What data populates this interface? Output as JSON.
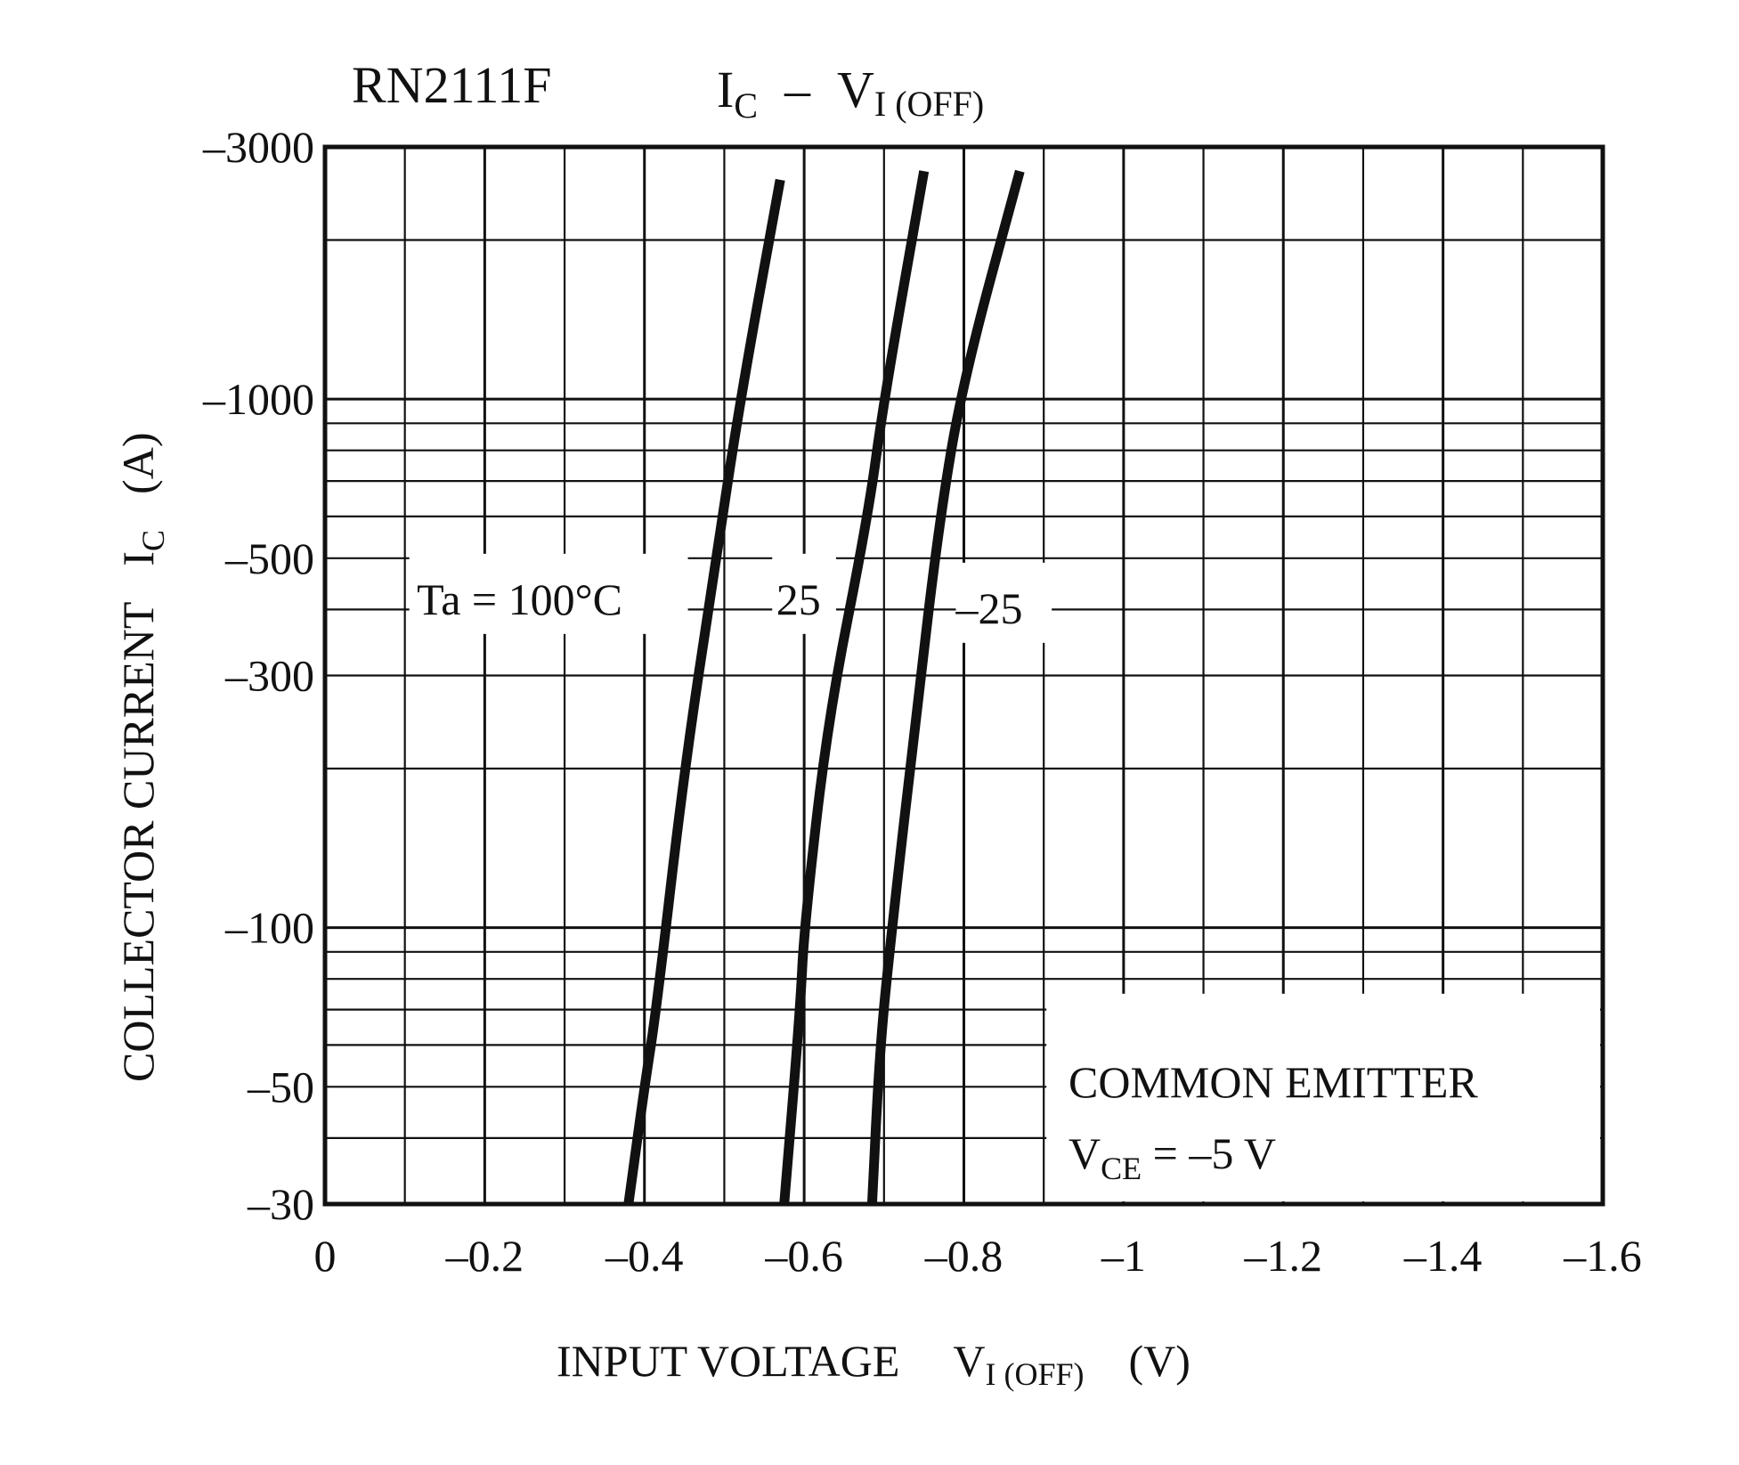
{
  "chart_data": {
    "type": "line",
    "title": {
      "part": "RN2111F",
      "y_main": "I",
      "y_sub": "C",
      "dash": "–",
      "x_main": "V",
      "x_sub": "I (OFF)"
    },
    "xlabel": {
      "text": "INPUT VOLTAGE",
      "sym_main": "V",
      "sym_sub": "I (OFF)",
      "unit": "(V)"
    },
    "ylabel": {
      "text": "COLLECTOR CURRENT",
      "sym_main": "I",
      "sym_sub": "C",
      "unit": "(A)"
    },
    "xlim": [
      0,
      -1.6
    ],
    "ylim": [
      -30,
      -3000
    ],
    "y_scale": "log",
    "x_ticks": [
      0,
      -0.2,
      -0.4,
      -0.6,
      -0.8,
      -1,
      -1.2,
      -1.4,
      -1.6
    ],
    "x_tick_labels": [
      "0",
      "–0.2",
      "–0.4",
      "–0.6",
      "–0.8",
      "–1",
      "–1.2",
      "–1.4",
      "–1.6"
    ],
    "y_ticks": [
      -30,
      -50,
      -100,
      -300,
      -500,
      -1000,
      -3000
    ],
    "y_tick_labels": [
      "–30",
      "–50",
      "–100",
      "–300",
      "–500",
      "–1000",
      "–3000"
    ],
    "grid": true,
    "series": [
      {
        "name": "Ta = 100°C",
        "x": [
          -0.38,
          -0.4,
          -0.415,
          -0.45,
          -0.49,
          -0.52,
          -0.57
        ],
        "y": [
          -30,
          -50,
          -70,
          -200,
          -500,
          -1000,
          -2600
        ]
      },
      {
        "name": "25",
        "x": [
          -0.575,
          -0.595,
          -0.6,
          -0.63,
          -0.68,
          -0.7,
          -0.75
        ],
        "y": [
          -30,
          -70,
          -100,
          -250,
          -600,
          -1000,
          -2700
        ]
      },
      {
        "name": "–25",
        "x": [
          -0.685,
          -0.695,
          -0.71,
          -0.74,
          -0.77,
          -0.8,
          -0.87
        ],
        "y": [
          -30,
          -60,
          -100,
          -250,
          -600,
          -1100,
          -2700
        ]
      }
    ],
    "annotations": {
      "line1": "COMMON EMITTER",
      "line2_main": "V",
      "line2_sub": "CE",
      "line2_rest": " = –5 V",
      "legend_position": "bottom-right"
    }
  }
}
